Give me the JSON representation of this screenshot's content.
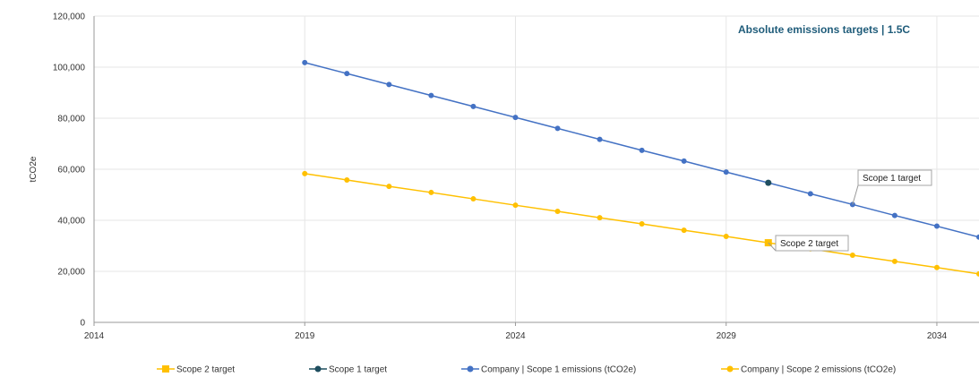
{
  "chart_data": {
    "type": "line",
    "title": "Absolute emissions targets | 1.5C",
    "xlabel": "",
    "ylabel": "tCO2e",
    "xlim": [
      2014,
      2035
    ],
    "ylim": [
      0,
      120000
    ],
    "x_ticks": [
      2014,
      2019,
      2024,
      2029,
      2034
    ],
    "x_tick_labels": [
      "2014",
      "2019",
      "2024",
      "2029",
      "2034"
    ],
    "y_ticks": [
      0,
      20000,
      40000,
      60000,
      80000,
      100000,
      120000
    ],
    "y_tick_labels": [
      "0",
      "20,000",
      "40,000",
      "60,000",
      "80,000",
      "100,000",
      "120,000"
    ],
    "grid": true,
    "legend_position": "bottom",
    "title_color": "#1f5c7a",
    "series": [
      {
        "name": "Company | Scope 1 emissions (tCO2e)",
        "color": "#4472c4",
        "marker": "circle",
        "x": [
          2019,
          2020,
          2021,
          2022,
          2023,
          2024,
          2025,
          2026,
          2027,
          2028,
          2029,
          2030,
          2031,
          2032,
          2033,
          2034,
          2035
        ],
        "values": [
          101800,
          97500,
          93200,
          88900,
          84600,
          80300,
          76000,
          71700,
          67400,
          63200,
          58900,
          54700,
          50400,
          46200,
          41900,
          37700,
          33400
        ]
      },
      {
        "name": "Company | Scope 2 emissions (tCO2e)",
        "color": "#ffc000",
        "marker": "circle",
        "x": [
          2019,
          2020,
          2021,
          2022,
          2023,
          2024,
          2025,
          2026,
          2027,
          2028,
          2029,
          2030,
          2031,
          2032,
          2033,
          2034,
          2035
        ],
        "values": [
          58300,
          55800,
          53300,
          50900,
          48400,
          45900,
          43500,
          41000,
          38600,
          36100,
          33700,
          31200,
          28800,
          26300,
          23900,
          21500,
          19000
        ]
      },
      {
        "name": "Scope 1 target",
        "color": "#1f4e5f",
        "marker": "circle",
        "x": [
          2030
        ],
        "values": [
          54700
        ]
      },
      {
        "name": "Scope 2 target",
        "color": "#ffc000",
        "marker": "square",
        "x": [
          2030
        ],
        "values": [
          31200
        ]
      }
    ],
    "legend_order": [
      "Scope 2 target",
      "Scope 1 target",
      "Company | Scope 1 emissions (tCO2e)",
      "Company | Scope 2 emissions (tCO2e)"
    ],
    "annotations": [
      {
        "text": "Scope 1 target",
        "x": 2032,
        "y": 46200
      },
      {
        "text": "Scope 2 target",
        "x": 2030,
        "y": 31200
      }
    ]
  }
}
